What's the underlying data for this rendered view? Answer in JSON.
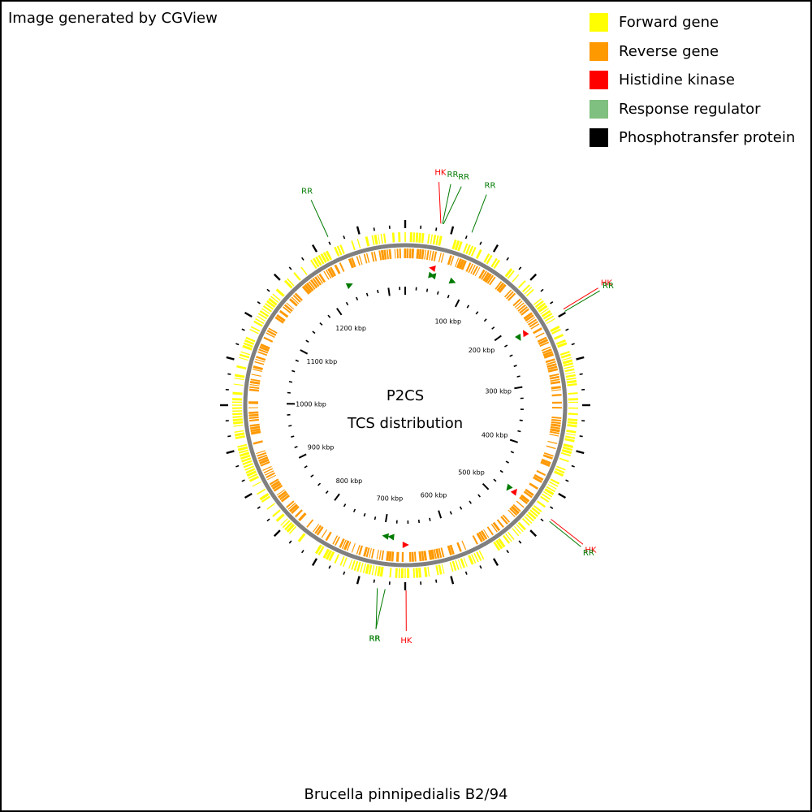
{
  "credit": "Image generated by CGView",
  "legend": [
    {
      "label": "Forward gene",
      "color": "#ffff00"
    },
    {
      "label": "Reverse gene",
      "color": "#ff9900"
    },
    {
      "label": "Histidine kinase",
      "color": "#ff0000"
    },
    {
      "label": "Response regulator",
      "color": "#7fbf7f"
    },
    {
      "label": "Phosphotransfer protein",
      "color": "#000000"
    }
  ],
  "map": {
    "title_line1": "P2CS",
    "title_line2": "TCS distribution",
    "organism": "Brucella pinnipedialis B2/94",
    "genome_length_kbp": 1330,
    "tick_labels": [
      {
        "kbp": 100,
        "label": "100 kbp"
      },
      {
        "kbp": 200,
        "label": "200 kbp"
      },
      {
        "kbp": 300,
        "label": "300 kbp"
      },
      {
        "kbp": 400,
        "label": "400 kbp"
      },
      {
        "kbp": 500,
        "label": "500 kbp"
      },
      {
        "kbp": 600,
        "label": "600 kbp"
      },
      {
        "kbp": 700,
        "label": "700 kbp"
      },
      {
        "kbp": 800,
        "label": "800 kbp"
      },
      {
        "kbp": 900,
        "label": "900 kbp"
      },
      {
        "kbp": 1000,
        "label": "1000 kbp"
      },
      {
        "kbp": 1100,
        "label": "1100 kbp"
      },
      {
        "kbp": 1200,
        "label": "1200 kbp"
      }
    ],
    "features": [
      {
        "type": "HK",
        "label": "HK",
        "kbp": 41,
        "strand": "reverse"
      },
      {
        "type": "RR",
        "label": "RR",
        "kbp": 43,
        "strand": "forward"
      },
      {
        "type": "RR",
        "label": "RR",
        "kbp": 44,
        "strand": "reverse"
      },
      {
        "type": "RR",
        "label": "RR",
        "kbp": 78,
        "strand": "forward"
      },
      {
        "type": "HK",
        "label": "HK",
        "kbp": 217,
        "strand": "reverse"
      },
      {
        "type": "RR",
        "label": "RR",
        "kbp": 220,
        "strand": "forward"
      },
      {
        "type": "HK",
        "label": "HK",
        "kbp": 473,
        "strand": "reverse"
      },
      {
        "type": "RR",
        "label": "RR",
        "kbp": 476,
        "strand": "forward"
      },
      {
        "type": "HK",
        "label": "HK",
        "kbp": 664,
        "strand": "reverse"
      },
      {
        "type": "RR",
        "label": "RR",
        "kbp": 688,
        "strand": "forward"
      },
      {
        "type": "RR",
        "label": "RR",
        "kbp": 697,
        "strand": "forward"
      },
      {
        "type": "RR",
        "label": "RR",
        "kbp": 1239,
        "strand": "forward"
      }
    ]
  }
}
